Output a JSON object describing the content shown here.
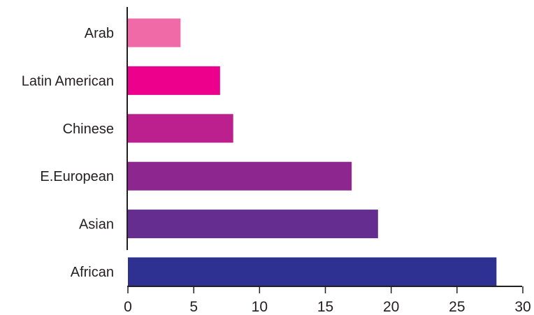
{
  "chart_data": {
    "type": "bar",
    "orientation": "horizontal",
    "title": "",
    "xlabel": "",
    "ylabel": "",
    "categories": [
      "Arab",
      "Latin American",
      "Chinese",
      "E.European",
      "Asian",
      "African"
    ],
    "values": [
      4,
      7,
      8,
      17,
      19,
      28
    ],
    "colors": [
      "#f06aa8",
      "#ec008c",
      "#bc1f8e",
      "#8e2690",
      "#662d91",
      "#2e3192"
    ],
    "xlim": [
      0,
      30
    ],
    "x_ticks": [
      0,
      5,
      10,
      15,
      20,
      25,
      30
    ],
    "x_tick_labels": [
      "0",
      "5",
      "10",
      "15",
      "20",
      "25",
      "30"
    ],
    "grid": false,
    "legend": "none"
  }
}
